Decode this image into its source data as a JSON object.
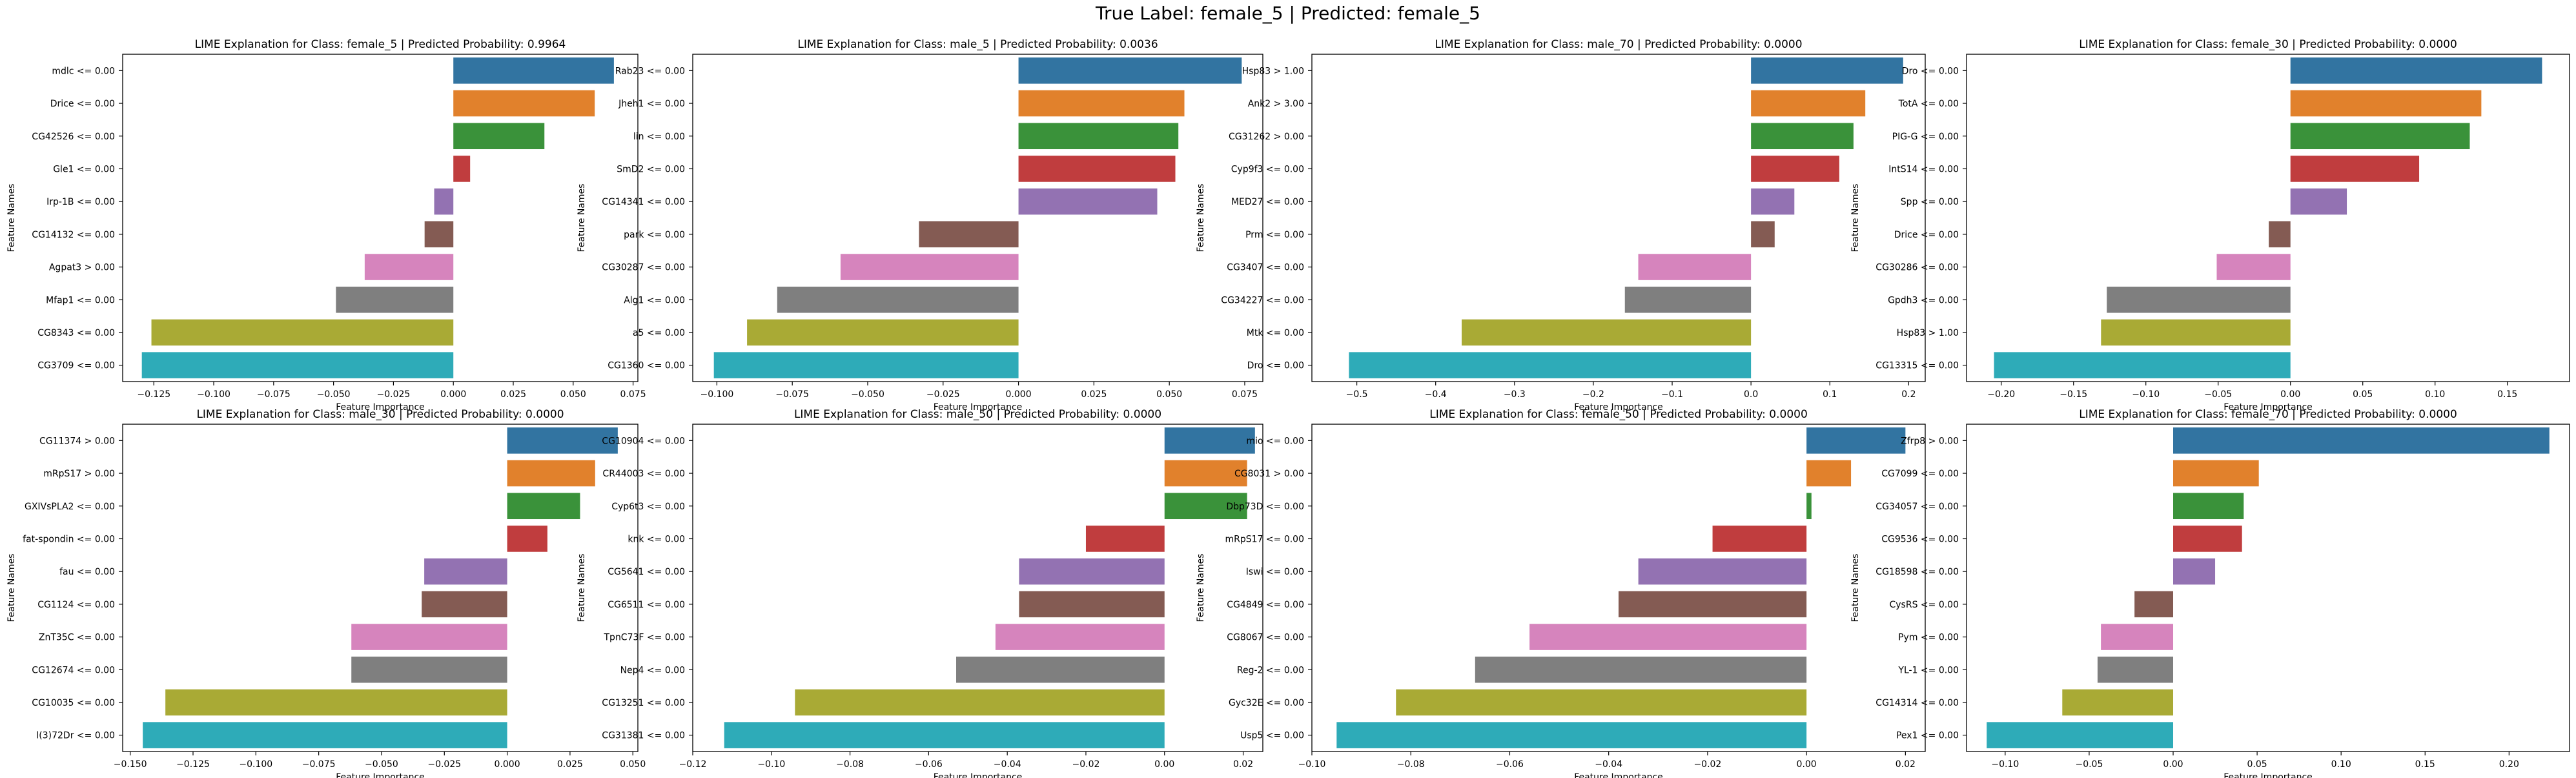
{
  "suptitle": "True Label: female_5 | Predicted: female_5",
  "ylabel": "Feature Names",
  "xlabel": "Feature Importance",
  "palette": [
    "#3274a1",
    "#e1812c",
    "#3a923a",
    "#c03d3e",
    "#9372b2",
    "#845b53",
    "#d684bd",
    "#7f7f7f",
    "#a9aa35",
    "#2eabb8"
  ],
  "chart_data": [
    {
      "type": "bar",
      "title": "LIME Explanation for Class: female_5 | Predicted Probability: 0.9964",
      "categories": [
        "mdlc <= 0.00",
        "Drice <= 0.00",
        "CG42526 <= 0.00",
        "Gle1 <= 0.00",
        "Irp-1B <= 0.00",
        "CG14132 <= 0.00",
        "Agpat3 > 0.00",
        "Mfap1 <= 0.00",
        "CG8343 <= 0.00",
        "CG3709 <= 0.00"
      ],
      "values": [
        0.067,
        0.059,
        0.038,
        0.007,
        -0.008,
        -0.012,
        -0.037,
        -0.049,
        -0.126,
        -0.13
      ],
      "xlim": [
        -0.138,
        0.077
      ],
      "xticks": [
        -0.125,
        -0.1,
        -0.075,
        -0.05,
        -0.025,
        0.0,
        0.025,
        0.05,
        0.075
      ],
      "xticklabels": [
        "−0.125",
        "−0.100",
        "−0.075",
        "−0.050",
        "−0.025",
        "0.000",
        "0.025",
        "0.050",
        "0.075"
      ],
      "xlabel": "Feature Importance",
      "ylabel": "Feature Names"
    },
    {
      "type": "bar",
      "title": "LIME Explanation for Class: male_5 | Predicted Probability: 0.0036",
      "categories": [
        "Rab23 <= 0.00",
        "Jheh1 <= 0.00",
        "lin <= 0.00",
        "SmD2 <= 0.00",
        "CG14341 <= 0.00",
        "park <= 0.00",
        "CG30287 <= 0.00",
        "Alg1 <= 0.00",
        "a5 <= 0.00",
        "CG1360 <= 0.00"
      ],
      "values": [
        0.074,
        0.055,
        0.053,
        0.052,
        0.046,
        -0.033,
        -0.059,
        -0.08,
        -0.09,
        -0.101
      ],
      "xlim": [
        -0.108,
        0.081
      ],
      "xticks": [
        -0.1,
        -0.075,
        -0.05,
        -0.025,
        0.0,
        0.025,
        0.05,
        0.075
      ],
      "xticklabels": [
        "−0.100",
        "−0.075",
        "−0.050",
        "−0.025",
        "0.000",
        "0.025",
        "0.050",
        "0.075"
      ],
      "xlabel": "Feature Importance",
      "ylabel": "Feature Names"
    },
    {
      "type": "bar",
      "title": "LIME Explanation for Class: male_70 | Predicted Probability: 0.0000",
      "categories": [
        "Hsp83 > 1.00",
        "Ank2 > 3.00",
        "CG31262 > 0.00",
        "Cyp9f3 <= 0.00",
        "MED27 <= 0.00",
        "Prm <= 0.00",
        "CG3407 <= 0.00",
        "CG34227 <= 0.00",
        "Mtk <= 0.00",
        "Dro <= 0.00"
      ],
      "values": [
        0.193,
        0.145,
        0.13,
        0.112,
        0.055,
        0.03,
        -0.143,
        -0.16,
        -0.367,
        -0.51
      ],
      "xlim": [
        -0.557,
        0.221
      ],
      "xticks": [
        -0.5,
        -0.4,
        -0.3,
        -0.2,
        -0.1,
        0.0,
        0.1,
        0.2
      ],
      "xticklabels": [
        "−0.5",
        "−0.4",
        "−0.3",
        "−0.2",
        "−0.1",
        "0.0",
        "0.1",
        "0.2"
      ],
      "xlabel": "Feature Importance",
      "ylabel": "Feature Names"
    },
    {
      "type": "bar",
      "title": "LIME Explanation for Class: female_30 | Predicted Probability: 0.0000",
      "categories": [
        "Dro <= 0.00",
        "TotA <= 0.00",
        "PIG-G <= 0.00",
        "IntS14 <= 0.00",
        "Spp <= 0.00",
        "Drice <= 0.00",
        "CG30286 <= 0.00",
        "Gpdh3 <= 0.00",
        "Hsp83 > 1.00",
        "CG13315 <= 0.00"
      ],
      "values": [
        0.174,
        0.132,
        0.124,
        0.089,
        0.039,
        -0.015,
        -0.051,
        -0.127,
        -0.131,
        -0.205
      ],
      "xlim": [
        -0.224,
        0.193
      ],
      "xticks": [
        -0.2,
        -0.15,
        -0.1,
        -0.05,
        0.0,
        0.05,
        0.1,
        0.15
      ],
      "xticklabels": [
        "−0.20",
        "−0.15",
        "−0.10",
        "−0.05",
        "0.00",
        "0.05",
        "0.10",
        "0.15"
      ],
      "xlabel": "Feature Importance",
      "ylabel": "Feature Names"
    },
    {
      "type": "bar",
      "title": "LIME Explanation for Class: male_30 | Predicted Probability: 0.0000",
      "categories": [
        "CG11374 > 0.00",
        "mRpS17 > 0.00",
        "GXIVsPLA2 <= 0.00",
        "fat-spondin <= 0.00",
        "fau <= 0.00",
        "CG1124 <= 0.00",
        "ZnT35C <= 0.00",
        "CG12674 <= 0.00",
        "CG10035 <= 0.00",
        "l(3)72Dr <= 0.00"
      ],
      "values": [
        0.044,
        0.035,
        0.029,
        0.016,
        -0.033,
        -0.034,
        -0.062,
        -0.062,
        -0.136,
        -0.145
      ],
      "xlim": [
        -0.153,
        0.052
      ],
      "xticks": [
        -0.15,
        -0.125,
        -0.1,
        -0.075,
        -0.05,
        -0.025,
        0.0,
        0.025,
        0.05
      ],
      "xticklabels": [
        "−0.150",
        "−0.125",
        "−0.100",
        "−0.075",
        "−0.050",
        "−0.025",
        "0.000",
        "0.025",
        "0.050"
      ],
      "xlabel": "Feature Importance",
      "ylabel": "Feature Names"
    },
    {
      "type": "bar",
      "title": "LIME Explanation for Class: male_50 | Predicted Probability: 0.0000",
      "categories": [
        "CG10904 <= 0.00",
        "CR44003 <= 0.00",
        "Cyp6t3 <= 0.00",
        "knk <= 0.00",
        "CG5641 <= 0.00",
        "CG6511 <= 0.00",
        "TpnC73F <= 0.00",
        "Nep4 <= 0.00",
        "CG13251 <= 0.00",
        "CG31381 <= 0.00"
      ],
      "values": [
        0.023,
        0.021,
        0.021,
        -0.02,
        -0.037,
        -0.037,
        -0.043,
        -0.053,
        -0.094,
        -0.112
      ],
      "xlim": [
        -0.12,
        0.025
      ],
      "xticks": [
        -0.12,
        -0.1,
        -0.08,
        -0.06,
        -0.04,
        -0.02,
        0.0,
        0.02
      ],
      "xticklabels": [
        "−0.12",
        "−0.10",
        "−0.08",
        "−0.06",
        "−0.04",
        "−0.02",
        "0.00",
        "0.02"
      ],
      "xlabel": "Feature Importance",
      "ylabel": "Feature Names"
    },
    {
      "type": "bar",
      "title": "LIME Explanation for Class: female_50 | Predicted Probability: 0.0000",
      "categories": [
        "mio <= 0.00",
        "CG8031 > 0.00",
        "Dbp73D <= 0.00",
        "mRpS17 <= 0.00",
        "Iswi <= 0.00",
        "CG4849 <= 0.00",
        "CG8067 <= 0.00",
        "Reg-2 <= 0.00",
        "Gyc32E <= 0.00",
        "Usp5 <= 0.00"
      ],
      "values": [
        0.02,
        0.009,
        0.001,
        -0.019,
        -0.034,
        -0.038,
        -0.056,
        -0.067,
        -0.083,
        -0.095
      ],
      "xlim": [
        -0.1,
        0.024
      ],
      "xticks": [
        -0.1,
        -0.08,
        -0.06,
        -0.04,
        -0.02,
        0.0,
        0.02
      ],
      "xticklabels": [
        "−0.10",
        "−0.08",
        "−0.06",
        "−0.04",
        "−0.02",
        "0.00",
        "0.02"
      ],
      "xlabel": "Feature Importance",
      "ylabel": "Feature Names"
    },
    {
      "type": "bar",
      "title": "LIME Explanation for Class: female_70 | Predicted Probability: 0.0000",
      "categories": [
        "Zfrp8 > 0.00",
        "CG7099 <= 0.00",
        "CG34057 <= 0.00",
        "CG9536 <= 0.00",
        "CG18598 <= 0.00",
        "CysRS <= 0.00",
        "Pym <= 0.00",
        "YL-1 <= 0.00",
        "CG14314 <= 0.00",
        "Pex1 <= 0.00"
      ],
      "values": [
        0.224,
        0.051,
        0.042,
        0.041,
        0.025,
        -0.023,
        -0.043,
        -0.045,
        -0.066,
        -0.111
      ],
      "xlim": [
        -0.123,
        0.236
      ],
      "xticks": [
        -0.1,
        -0.05,
        0.0,
        0.05,
        0.1,
        0.15,
        0.2
      ],
      "xticklabels": [
        "−0.10",
        "−0.05",
        "0.00",
        "0.05",
        "0.10",
        "0.15",
        "0.20"
      ],
      "xlabel": "Feature Importance",
      "ylabel": "Feature Names"
    }
  ]
}
